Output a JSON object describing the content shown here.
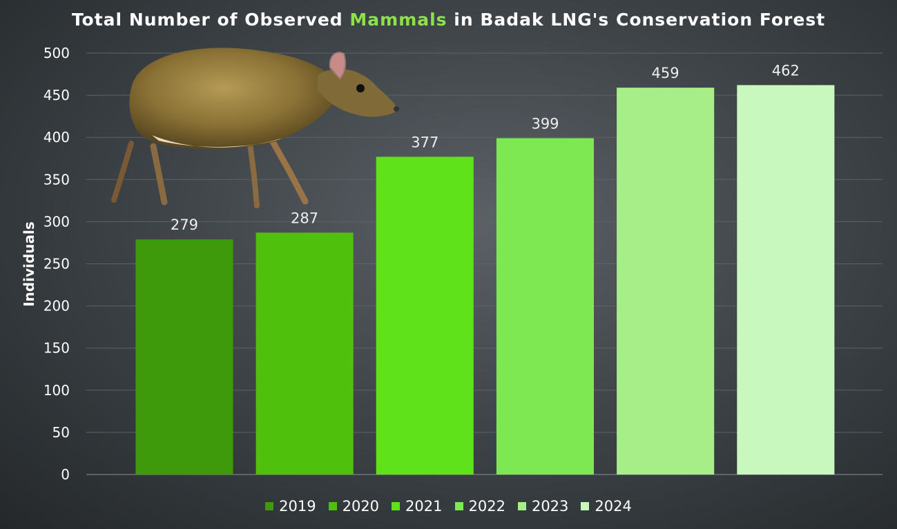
{
  "title": {
    "before": "Total Number of Observed ",
    "highlight": "Mammals",
    "after": " in Badak LNG's Conservation Forest"
  },
  "chart_data": {
    "type": "bar",
    "categories": [
      "2019",
      "2020",
      "2021",
      "2022",
      "2023",
      "2024"
    ],
    "values": [
      279,
      287,
      377,
      399,
      459,
      462
    ],
    "ylabel": "Individuals",
    "ylim": [
      0,
      500
    ],
    "yticks": [
      0,
      50,
      100,
      150,
      200,
      250,
      300,
      350,
      400,
      450,
      500
    ],
    "grid": true,
    "legend_position": "bottom",
    "colors": [
      "#3e9a0a",
      "#4fc10c",
      "#5fe21a",
      "#7ee853",
      "#a7ee88",
      "#c9f8bf"
    ],
    "title_highlight_color": "#8be24a"
  }
}
